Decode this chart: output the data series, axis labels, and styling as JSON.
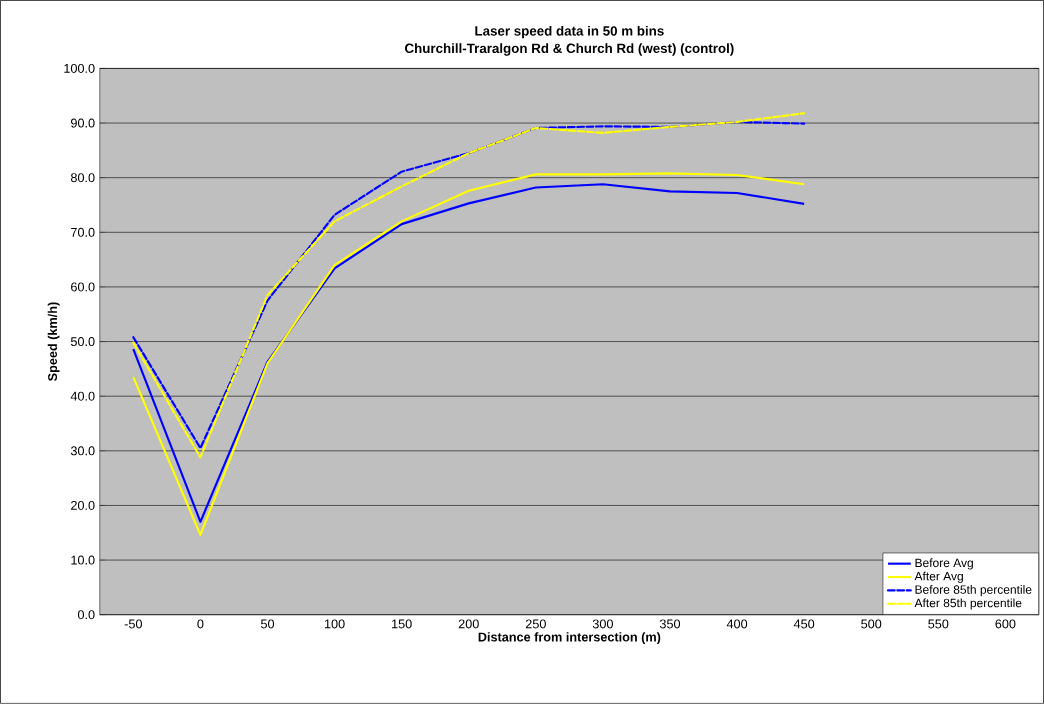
{
  "chart_data": {
    "type": "line",
    "title": "Laser speed data in 50 m bins",
    "subtitle": "Churchill-Traralgon Rd & Church Rd (west) (control)",
    "xlabel": "Distance from intersection (m)",
    "ylabel": "Speed (km/h)",
    "categories": [
      "-50",
      "0",
      "50",
      "100",
      "150",
      "200",
      "250",
      "300",
      "350",
      "400",
      "450",
      "500",
      "550",
      "600"
    ],
    "series": [
      {
        "name": "Before Avg",
        "color": "#0000ff",
        "line_style": "solid",
        "values": [
          48.6,
          17.0,
          46.3,
          63.4,
          71.5,
          75.3,
          78.2,
          78.8,
          77.5,
          77.2,
          75.2,
          null,
          null,
          null
        ]
      },
      {
        "name": "After Avg",
        "color": "#ffff00",
        "line_style": "solid",
        "values": [
          43.5,
          14.6,
          46.0,
          64.0,
          72.0,
          77.6,
          80.6,
          80.6,
          80.8,
          80.5,
          78.8,
          null,
          null,
          null
        ]
      },
      {
        "name": "Before 85th percentile",
        "color": "#0000ff",
        "line_style": "dashed",
        "values": [
          50.8,
          30.5,
          57.5,
          73.2,
          81.1,
          84.5,
          89.1,
          89.4,
          89.3,
          90.2,
          89.9,
          null,
          null,
          null
        ]
      },
      {
        "name": "After 85th percentile",
        "color": "#ffff00",
        "line_style": "dashed",
        "values": [
          49.8,
          28.8,
          58.5,
          72.0,
          78.4,
          84.5,
          89.1,
          88.2,
          89.3,
          90.2,
          91.8,
          null,
          null,
          null
        ]
      }
    ],
    "ylim": [
      0,
      100
    ],
    "yticks": [
      {
        "value": 0,
        "label": "0.0"
      },
      {
        "value": 10,
        "label": "10.0"
      },
      {
        "value": 20,
        "label": "20.0"
      },
      {
        "value": 30,
        "label": "30.0"
      },
      {
        "value": 40,
        "label": "40.0"
      },
      {
        "value": 50,
        "label": "50.0"
      },
      {
        "value": 60,
        "label": "60.0"
      },
      {
        "value": 70,
        "label": "70.0"
      },
      {
        "value": 80,
        "label": "80.0"
      },
      {
        "value": 90,
        "label": "90.0"
      },
      {
        "value": 100,
        "label": "100.0"
      }
    ],
    "grid": "y",
    "legend": "bottom right",
    "marker": "none"
  }
}
